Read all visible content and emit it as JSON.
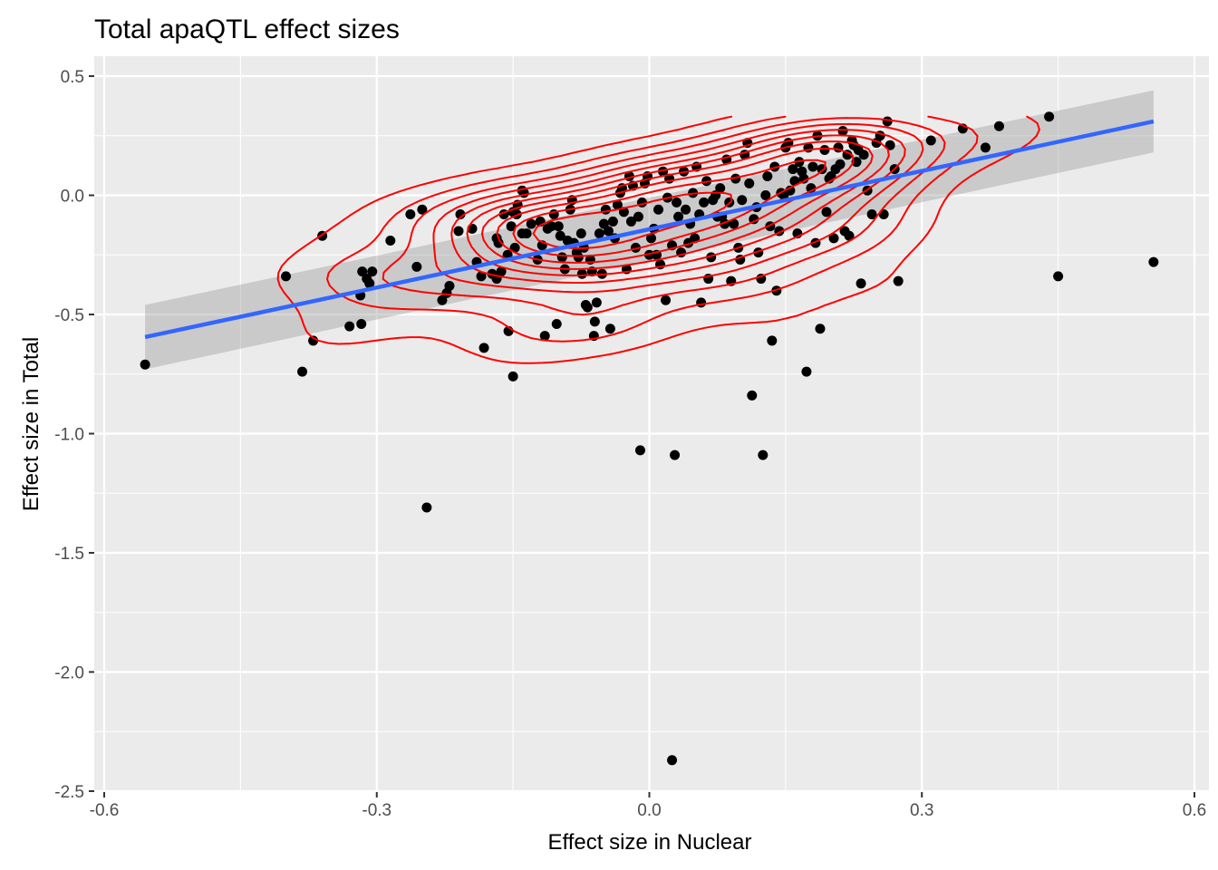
{
  "chart_data": {
    "type": "scatter",
    "title": "Total apaQTL effect sizes",
    "xlabel": "Effect size in Nuclear",
    "ylabel": "Effect size in Total",
    "xlim": [
      -0.6,
      0.6
    ],
    "ylim": [
      -2.5,
      0.5
    ],
    "xticks": [
      -0.6,
      -0.3,
      0.0,
      0.3,
      0.6
    ],
    "xtick_labels": [
      "-0.6",
      "-0.3",
      "0.0",
      "0.3",
      "0.6"
    ],
    "yticks": [
      -2.5,
      -2.0,
      -1.5,
      -1.0,
      -0.5,
      0.0,
      0.5
    ],
    "ytick_labels": [
      "-2.5",
      "-2.0",
      "-1.5",
      "-1.0",
      "-0.5",
      "0.0",
      "0.5"
    ],
    "grid": true,
    "colors": {
      "panel": "#ebebeb",
      "grid": "#ffffff",
      "points": "#000000",
      "fit_line": "#3366ff",
      "ribbon": "#999999",
      "contour": "#ff0000"
    },
    "fit": {
      "method": "lm",
      "x": [
        -0.555,
        0.555
      ],
      "y": [
        -0.595,
        0.31
      ],
      "ci_upper": [
        -0.46,
        0.44
      ],
      "ci_lower": [
        -0.73,
        0.18
      ]
    },
    "points": [
      [
        -0.555,
        -0.71
      ],
      [
        -0.4,
        -0.34
      ],
      [
        -0.382,
        -0.74
      ],
      [
        -0.37,
        -0.61
      ],
      [
        -0.36,
        -0.17
      ],
      [
        -0.33,
        -0.55
      ],
      [
        -0.317,
        -0.54
      ],
      [
        -0.318,
        -0.42
      ],
      [
        -0.316,
        -0.32
      ],
      [
        -0.311,
        -0.35
      ],
      [
        -0.308,
        -0.37
      ],
      [
        -0.305,
        -0.32
      ],
      [
        -0.285,
        -0.19
      ],
      [
        -0.263,
        -0.08
      ],
      [
        -0.256,
        -0.3
      ],
      [
        -0.25,
        -0.06
      ],
      [
        -0.245,
        -1.31
      ],
      [
        -0.228,
        -0.44
      ],
      [
        -0.223,
        -0.41
      ],
      [
        -0.22,
        -0.38
      ],
      [
        -0.208,
        -0.08
      ],
      [
        -0.21,
        -0.15
      ],
      [
        -0.195,
        -0.14
      ],
      [
        -0.19,
        -0.28
      ],
      [
        -0.185,
        -0.34
      ],
      [
        -0.182,
        -0.64
      ],
      [
        -0.173,
        -0.33
      ],
      [
        -0.168,
        -0.18
      ],
      [
        -0.166,
        -0.2
      ],
      [
        -0.168,
        -0.35
      ],
      [
        -0.163,
        -0.32
      ],
      [
        -0.16,
        -0.08
      ],
      [
        -0.156,
        -0.25
      ],
      [
        -0.152,
        -0.13
      ],
      [
        -0.15,
        -0.07
      ],
      [
        -0.146,
        -0.08
      ],
      [
        -0.14,
        -0.16
      ],
      [
        -0.155,
        -0.57
      ],
      [
        -0.15,
        -0.76
      ],
      [
        -0.148,
        -0.22
      ],
      [
        -0.145,
        -0.04
      ],
      [
        -0.14,
        0.02
      ],
      [
        -0.138,
        0.01
      ],
      [
        -0.135,
        -0.16
      ],
      [
        -0.13,
        -0.12
      ],
      [
        -0.123,
        -0.27
      ],
      [
        -0.12,
        -0.11
      ],
      [
        -0.118,
        -0.21
      ],
      [
        -0.115,
        -0.59
      ],
      [
        -0.112,
        -0.14
      ],
      [
        -0.108,
        -0.13
      ],
      [
        -0.105,
        -0.08
      ],
      [
        -0.102,
        -0.54
      ],
      [
        -0.1,
        -0.13
      ],
      [
        -0.098,
        -0.17
      ],
      [
        -0.096,
        -0.26
      ],
      [
        -0.093,
        -0.31
      ],
      [
        -0.09,
        -0.19
      ],
      [
        -0.087,
        -0.06
      ],
      [
        -0.085,
        -0.02
      ],
      [
        -0.083,
        -0.2
      ],
      [
        -0.08,
        -0.24
      ],
      [
        -0.078,
        -0.26
      ],
      [
        -0.075,
        -0.16
      ],
      [
        -0.074,
        -0.33
      ],
      [
        -0.072,
        -0.22
      ],
      [
        -0.07,
        -0.46
      ],
      [
        -0.068,
        -0.47
      ],
      [
        -0.065,
        -0.27
      ],
      [
        -0.063,
        -0.32
      ],
      [
        -0.061,
        -0.59
      ],
      [
        -0.06,
        -0.53
      ],
      [
        -0.058,
        -0.45
      ],
      [
        -0.055,
        -0.16
      ],
      [
        -0.052,
        -0.33
      ],
      [
        -0.05,
        -0.12
      ],
      [
        -0.048,
        -0.06
      ],
      [
        -0.045,
        -0.15
      ],
      [
        -0.043,
        -0.56
      ],
      [
        -0.04,
        -0.11
      ],
      [
        -0.038,
        -0.18
      ],
      [
        -0.035,
        -0.04
      ],
      [
        -0.032,
        0.01
      ],
      [
        -0.03,
        0.03
      ],
      [
        -0.028,
        -0.07
      ],
      [
        -0.025,
        -0.31
      ],
      [
        -0.022,
        0.08
      ],
      [
        -0.02,
        -0.11
      ],
      [
        -0.018,
        0.04
      ],
      [
        -0.015,
        -0.22
      ],
      [
        -0.012,
        -0.09
      ],
      [
        -0.01,
        -1.07
      ],
      [
        -0.008,
        -0.03
      ],
      [
        -0.005,
        0.05
      ],
      [
        -0.002,
        0.08
      ],
      [
        0.0,
        -0.25
      ],
      [
        0.002,
        -0.18
      ],
      [
        0.005,
        -0.14
      ],
      [
        0.008,
        -0.25
      ],
      [
        0.01,
        -0.06
      ],
      [
        0.012,
        -0.29
      ],
      [
        0.015,
        0.1
      ],
      [
        0.018,
        -0.44
      ],
      [
        0.02,
        -0.01
      ],
      [
        0.022,
        0.07
      ],
      [
        0.025,
        -0.21
      ],
      [
        0.028,
        -1.09
      ],
      [
        0.03,
        -0.03
      ],
      [
        0.032,
        -0.09
      ],
      [
        0.035,
        -0.24
      ],
      [
        0.038,
        0.1
      ],
      [
        0.04,
        -0.06
      ],
      [
        0.043,
        -0.2
      ],
      [
        0.045,
        -0.12
      ],
      [
        0.048,
        0.01
      ],
      [
        0.05,
        -0.18
      ],
      [
        0.052,
        0.12
      ],
      [
        0.055,
        -0.08
      ],
      [
        0.057,
        -0.45
      ],
      [
        0.06,
        -0.03
      ],
      [
        0.063,
        0.06
      ],
      [
        0.065,
        -0.35
      ],
      [
        0.068,
        -0.26
      ],
      [
        0.07,
        -0.02
      ],
      [
        0.073,
        0.0
      ],
      [
        0.075,
        -0.09
      ],
      [
        0.078,
        0.03
      ],
      [
        0.08,
        -0.09
      ],
      [
        0.083,
        -0.12
      ],
      [
        0.085,
        0.15
      ],
      [
        0.088,
        -0.03
      ],
      [
        0.09,
        -0.36
      ],
      [
        0.093,
        -0.12
      ],
      [
        0.095,
        0.07
      ],
      [
        0.098,
        -0.22
      ],
      [
        0.1,
        -0.27
      ],
      [
        0.102,
        -0.02
      ],
      [
        0.105,
        0.17
      ],
      [
        0.108,
        0.22
      ],
      [
        0.11,
        0.05
      ],
      [
        0.113,
        -0.84
      ],
      [
        0.115,
        -0.1
      ],
      [
        0.118,
        -0.05
      ],
      [
        0.12,
        -0.24
      ],
      [
        0.123,
        -0.35
      ],
      [
        0.125,
        -1.09
      ],
      [
        0.128,
        0.0
      ],
      [
        0.13,
        0.08
      ],
      [
        0.133,
        -0.13
      ],
      [
        0.135,
        -0.61
      ],
      [
        0.138,
        0.12
      ],
      [
        0.14,
        -0.4
      ],
      [
        0.143,
        -0.15
      ],
      [
        0.145,
        0.01
      ],
      [
        0.148,
        0.0
      ],
      [
        0.15,
        0.2
      ],
      [
        0.153,
        0.22
      ],
      [
        0.155,
        0.02
      ],
      [
        0.158,
        0.11
      ],
      [
        0.16,
        0.06
      ],
      [
        0.163,
        -0.16
      ],
      [
        0.165,
        0.14
      ],
      [
        0.168,
        0.1
      ],
      [
        0.17,
        0.07
      ],
      [
        0.173,
        -0.74
      ],
      [
        0.175,
        0.2
      ],
      [
        0.178,
        0.03
      ],
      [
        0.18,
        0.12
      ],
      [
        0.183,
        -0.2
      ],
      [
        0.185,
        0.25
      ],
      [
        0.188,
        -0.56
      ],
      [
        0.19,
        0.11
      ],
      [
        0.193,
        0.19
      ],
      [
        0.195,
        -0.07
      ],
      [
        0.198,
        0.07
      ],
      [
        0.2,
        0.08
      ],
      [
        0.203,
        -0.18
      ],
      [
        0.205,
        0.11
      ],
      [
        0.208,
        0.2
      ],
      [
        0.21,
        0.13
      ],
      [
        0.213,
        0.27
      ],
      [
        0.215,
        -0.15
      ],
      [
        0.218,
        0.17
      ],
      [
        0.22,
        -0.17
      ],
      [
        0.223,
        0.23
      ],
      [
        0.225,
        0.21
      ],
      [
        0.228,
        0.14
      ],
      [
        0.23,
        0.19
      ],
      [
        0.233,
        -0.37
      ],
      [
        0.236,
        0.17
      ],
      [
        0.24,
        0.02
      ],
      [
        0.245,
        -0.08
      ],
      [
        0.25,
        0.22
      ],
      [
        0.254,
        0.25
      ],
      [
        0.258,
        -0.08
      ],
      [
        0.262,
        0.31
      ],
      [
        0.265,
        0.21
      ],
      [
        0.27,
        0.11
      ],
      [
        0.274,
        -0.36
      ],
      [
        0.31,
        0.23
      ],
      [
        0.345,
        0.28
      ],
      [
        0.37,
        0.2
      ],
      [
        0.385,
        0.29
      ],
      [
        0.44,
        0.33
      ],
      [
        0.45,
        -0.34
      ],
      [
        0.555,
        -0.28
      ],
      [
        0.025,
        -2.37
      ]
    ]
  }
}
